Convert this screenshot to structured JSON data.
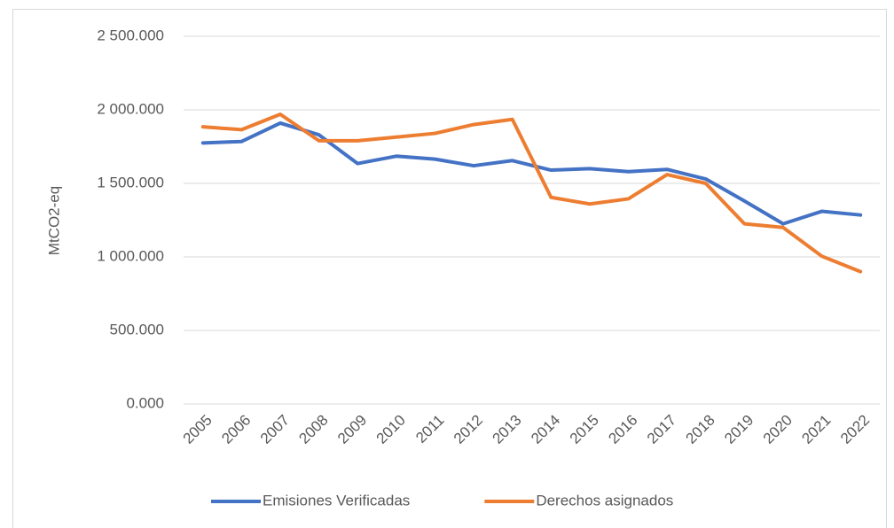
{
  "chart_data": {
    "type": "line",
    "y_label": "MtCO2-eq",
    "categories": [
      "2005",
      "2006",
      "2007",
      "2008",
      "2009",
      "2010",
      "2011",
      "2012",
      "2013",
      "2014",
      "2015",
      "2016",
      "2017",
      "2018",
      "2019",
      "2020",
      "2021",
      "2022"
    ],
    "series": [
      {
        "name": "Emisiones Verificadas",
        "color": "#4472c4",
        "values": [
          1775,
          1785,
          1910,
          1830,
          1635,
          1685,
          1665,
          1620,
          1655,
          1590,
          1600,
          1580,
          1595,
          1530,
          1380,
          1225,
          1310,
          1285
        ]
      },
      {
        "name": "Derechos asignados",
        "color": "#ed7d31",
        "values": [
          1885,
          1865,
          1970,
          1790,
          1790,
          1815,
          1840,
          1900,
          1935,
          1405,
          1360,
          1395,
          1560,
          1500,
          1225,
          1200,
          1005,
          900
        ]
      }
    ],
    "ylim": [
      0,
      2500
    ],
    "yticks": [
      {
        "value": 0,
        "label": "0.000"
      },
      {
        "value": 500,
        "label": "500.000"
      },
      {
        "value": 1000,
        "label": "1 000.000"
      },
      {
        "value": 1500,
        "label": "1 500.000"
      },
      {
        "value": 2000,
        "label": "2 000.000"
      },
      {
        "value": 2500,
        "label": "2 500.000"
      }
    ],
    "grid": true,
    "legend": "bottom"
  }
}
